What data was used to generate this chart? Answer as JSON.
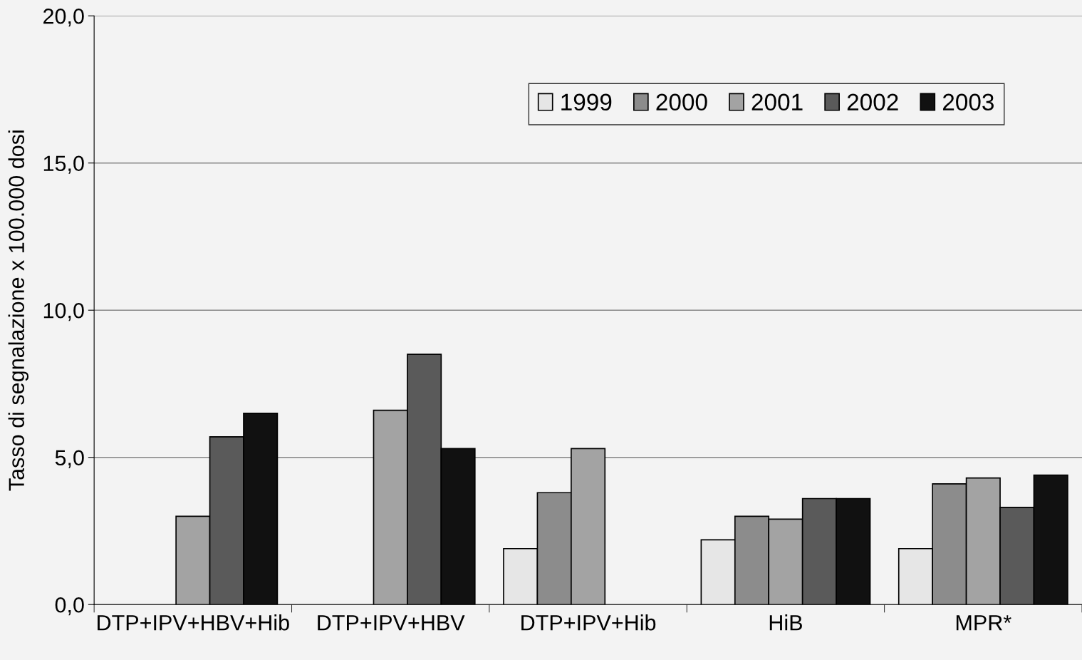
{
  "chart_data": {
    "type": "bar",
    "ylabel": "Tasso di segnalazione x 100.000 dosi",
    "categories": [
      "DTP+IPV+HBV+Hib",
      "DTP+IPV+HBV",
      "DTP+IPV+Hib",
      "HiB",
      "MPR*"
    ],
    "series": [
      {
        "name": "1999",
        "color": "#e6e6e6",
        "values": [
          null,
          null,
          1.9,
          2.2,
          1.9
        ]
      },
      {
        "name": "2000",
        "color": "#8c8c8c",
        "values": [
          null,
          null,
          3.8,
          3.0,
          4.1
        ]
      },
      {
        "name": "2001",
        "color": "#a3a3a3",
        "values": [
          3.0,
          6.6,
          5.3,
          2.9,
          4.3
        ]
      },
      {
        "name": "2002",
        "color": "#5a5a5a",
        "values": [
          5.7,
          8.5,
          null,
          3.6,
          3.3
        ]
      },
      {
        "name": "2003",
        "color": "#111111",
        "values": [
          6.5,
          5.3,
          null,
          3.6,
          4.4
        ]
      }
    ],
    "ylim": [
      0,
      20
    ],
    "yticks": [
      {
        "value": 0,
        "label": "0,0"
      },
      {
        "value": 5,
        "label": "5,0"
      },
      {
        "value": 10,
        "label": "10,0"
      },
      {
        "value": 15,
        "label": "15,0"
      },
      {
        "value": 20,
        "label": "20,0"
      }
    ],
    "grid": "y",
    "legend": "top right"
  }
}
